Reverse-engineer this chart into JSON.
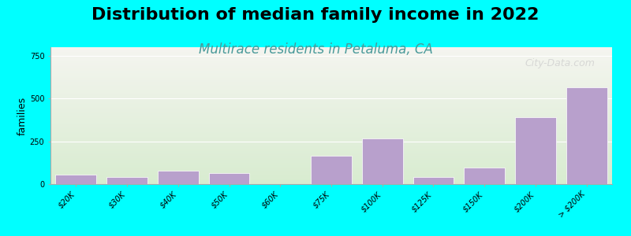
{
  "title": "Distribution of median family income in 2022",
  "subtitle": "Multirace residents in Petaluma, CA",
  "xlabel": "",
  "ylabel": "families",
  "categories": [
    "$20K",
    "$30K",
    "$40K",
    "$50K",
    "$60K",
    "$75K",
    "$100K",
    "$125K",
    "$150K",
    "$200K",
    "> $200K"
  ],
  "values": [
    55,
    40,
    80,
    65,
    0,
    165,
    265,
    40,
    95,
    390,
    565
  ],
  "bar_color": "#b8a0cc",
  "bar_edge_color": "#ffffff",
  "background_color": "#00ffff",
  "plot_bg_top": "#f5f5f0",
  "plot_bg_bottom": "#d8ecd0",
  "grid_color": "#ffffff",
  "yticks": [
    0,
    250,
    500,
    750
  ],
  "ylim": [
    0,
    800
  ],
  "title_fontsize": 16,
  "subtitle_fontsize": 12,
  "subtitle_color": "#4a9a9a",
  "watermark_text": "City-Data.com",
  "tick_label_fontsize": 7,
  "ylabel_fontsize": 9
}
